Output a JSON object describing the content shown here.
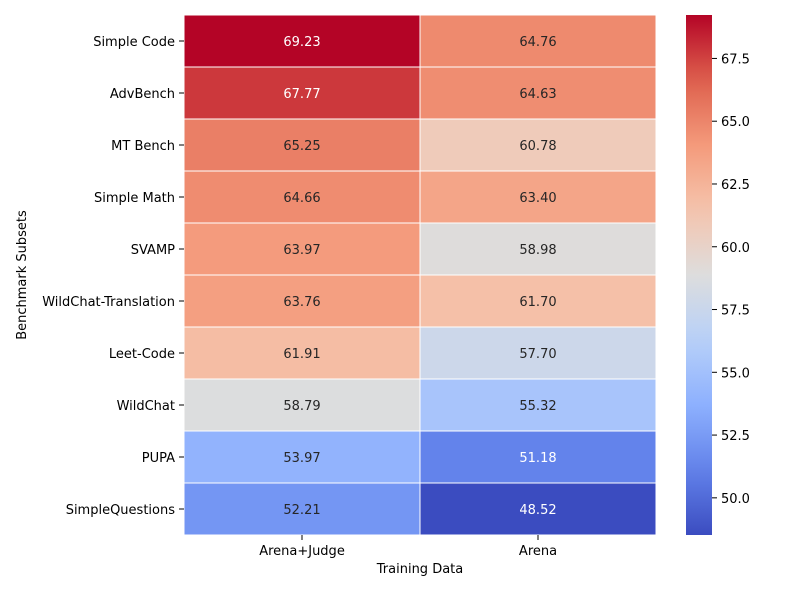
{
  "chart_data": {
    "type": "heatmap",
    "title": "",
    "xlabel": "Training Data",
    "ylabel": "Benchmark Subsets",
    "columns": [
      "Arena+Judge",
      "Arena"
    ],
    "rows": [
      "Simple Code",
      "AdvBench",
      "MT Bench",
      "Simple Math",
      "SVAMP",
      "WildChat-Translation",
      "Leet-Code",
      "WildChat",
      "PUPA",
      "SimpleQuestions"
    ],
    "values": [
      [
        69.23,
        64.76
      ],
      [
        67.77,
        64.63
      ],
      [
        65.25,
        60.78
      ],
      [
        64.66,
        63.4
      ],
      [
        63.97,
        58.98
      ],
      [
        63.76,
        61.7
      ],
      [
        61.91,
        57.7
      ],
      [
        58.79,
        55.32
      ],
      [
        53.97,
        51.18
      ],
      [
        52.21,
        48.52
      ]
    ],
    "value_labels": [
      [
        "69.23",
        "64.76"
      ],
      [
        "67.77",
        "64.63"
      ],
      [
        "65.25",
        "60.78"
      ],
      [
        "64.66",
        "63.40"
      ],
      [
        "63.97",
        "58.98"
      ],
      [
        "63.76",
        "61.70"
      ],
      [
        "61.91",
        "57.70"
      ],
      [
        "58.79",
        "55.32"
      ],
      [
        "53.97",
        "51.18"
      ],
      [
        "52.21",
        "48.52"
      ]
    ],
    "colormap": "coolwarm",
    "colorbar": {
      "range": [
        48.52,
        69.23
      ],
      "ticks": [
        50.0,
        52.5,
        55.0,
        57.5,
        60.0,
        62.5,
        65.0,
        67.5
      ],
      "tick_labels": [
        "50.0",
        "52.5",
        "55.0",
        "57.5",
        "60.0",
        "62.5",
        "65.0",
        "67.5"
      ]
    }
  }
}
